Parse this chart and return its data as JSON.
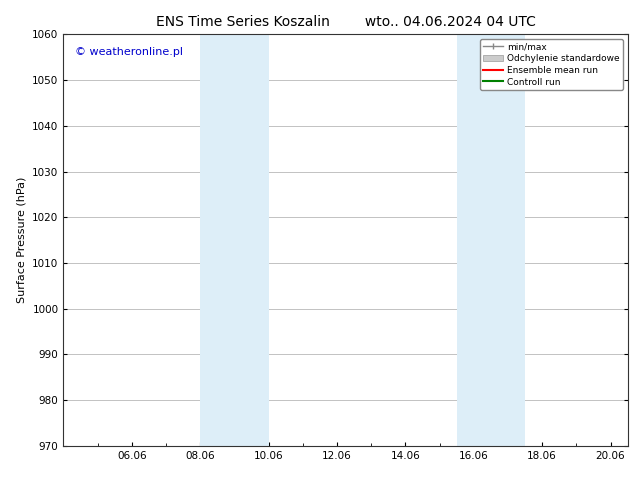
{
  "title_left": "ENS Time Series Koszalin",
  "title_right": "wto.. 04.06.2024 04 UTC",
  "ylabel": "Surface Pressure (hPa)",
  "ylim": [
    970,
    1060
  ],
  "yticks": [
    970,
    980,
    990,
    1000,
    1010,
    1020,
    1030,
    1040,
    1050,
    1060
  ],
  "xlim": [
    4.0,
    20.5
  ],
  "xtick_labels": [
    "06.06",
    "08.06",
    "10.06",
    "12.06",
    "14.06",
    "16.06",
    "18.06",
    "20.06"
  ],
  "xtick_positions": [
    6,
    8,
    10,
    12,
    14,
    16,
    18,
    20
  ],
  "shaded_regions": [
    {
      "x_start": 8.0,
      "x_end": 9.0,
      "color": "#ddeef8",
      "alpha": 1.0
    },
    {
      "x_start": 9.0,
      "x_end": 10.0,
      "color": "#ddeef8",
      "alpha": 1.0
    },
    {
      "x_start": 15.5,
      "x_end": 16.5,
      "color": "#ddeef8",
      "alpha": 1.0
    },
    {
      "x_start": 16.5,
      "x_end": 17.5,
      "color": "#ddeef8",
      "alpha": 1.0
    }
  ],
  "watermark_text": "© weatheronline.pl",
  "watermark_color": "#0000cc",
  "legend_items": [
    {
      "label": "min/max"
    },
    {
      "label": "Odchylenie standardowe"
    },
    {
      "label": "Ensemble mean run"
    },
    {
      "label": "Controll run"
    }
  ],
  "bg_color": "#ffffff",
  "grid_color": "#aaaaaa",
  "title_fontsize": 10,
  "label_fontsize": 8,
  "tick_fontsize": 7.5
}
